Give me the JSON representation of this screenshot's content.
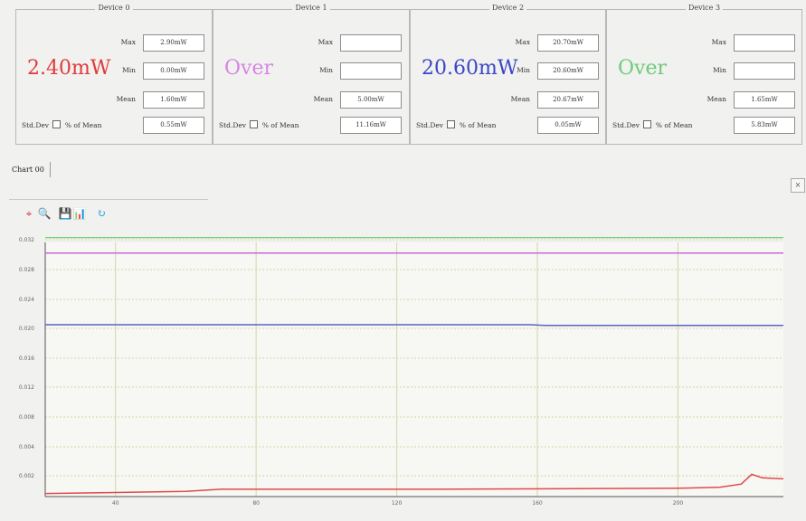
{
  "devices": [
    {
      "title": "Device 0",
      "big_value": "2.40mW",
      "big_color": "#e23a3a",
      "max_label": "Max",
      "max": "2.90mW",
      "min_label": "Min",
      "min": "0.00mW",
      "mean_label": "Mean",
      "mean": "1.60mW",
      "std_label": "Std.Dev",
      "pct_label": "% of Mean",
      "std": "0.55mW"
    },
    {
      "title": "Device 1",
      "big_value": "Over",
      "big_color": "#d685e6",
      "max_label": "Max",
      "max": "",
      "min_label": "Min",
      "min": "",
      "mean_label": "Mean",
      "mean": "5.00mW",
      "std_label": "Std.Dev",
      "pct_label": "% of Mean",
      "std": "11.16mW"
    },
    {
      "title": "Device 2",
      "big_value": "20.60mW",
      "big_color": "#3c46c8",
      "max_label": "Max",
      "max": "20.70mW",
      "min_label": "Min",
      "min": "20.60mW",
      "mean_label": "Mean",
      "mean": "20.67mW",
      "std_label": "Std.Dev",
      "pct_label": "% of Mean",
      "std": "0.05mW"
    },
    {
      "title": "Device 3",
      "big_value": "Over",
      "big_color": "#6ecb7a",
      "max_label": "Max",
      "max": "",
      "min_label": "Min",
      "min": "",
      "mean_label": "Mean",
      "mean": "1.65mW",
      "std_label": "Std.Dev",
      "pct_label": "% of Mean",
      "std": "5.83mW"
    }
  ],
  "tab": {
    "label": "Chart 00"
  },
  "close": {
    "label": "×"
  },
  "toolbar": [
    {
      "name": "crosshair-icon",
      "glyph": "⌖",
      "color": "#d23b3b"
    },
    {
      "name": "zoom-icon",
      "glyph": "🔍",
      "color": "#1f5fbf"
    },
    {
      "name": "save-icon",
      "glyph": "💾",
      "color": "#1a2a6e"
    },
    {
      "name": "export-data-icon",
      "glyph": "📊",
      "color": "#5a5a2a"
    },
    {
      "name": "refresh-icon",
      "glyph": "↻",
      "color": "#1ba6d6"
    }
  ],
  "chart_data": {
    "type": "line",
    "yticks": [
      "0.002",
      "0.004",
      "0.008",
      "0.012",
      "0.016",
      "0.020",
      "0.024",
      "0.028",
      "0.032"
    ],
    "xticks": [
      "40",
      "80",
      "120",
      "160",
      "200"
    ],
    "x_range": [
      20,
      230
    ],
    "series": [
      {
        "color": "#6fcf6f",
        "values": [
          [
            20,
            0.0323
          ],
          [
            230,
            0.0323
          ]
        ]
      },
      {
        "color": "#c86ad8",
        "values": [
          [
            20,
            0.0302
          ],
          [
            230,
            0.0302
          ]
        ]
      },
      {
        "color": "#5a62c8",
        "values": [
          [
            20,
            0.0205
          ],
          [
            158,
            0.0205
          ],
          [
            162,
            0.0204
          ],
          [
            230,
            0.0204
          ]
        ]
      },
      {
        "color": "#e04a4a",
        "values": [
          [
            20,
            0.0003
          ],
          [
            60,
            0.0005
          ],
          [
            70,
            0.0007
          ],
          [
            130,
            0.0007
          ],
          [
            200,
            0.0008
          ],
          [
            212,
            0.0009
          ],
          [
            218,
            0.0012
          ],
          [
            221,
            0.0021
          ],
          [
            224,
            0.0018
          ],
          [
            230,
            0.0017
          ]
        ]
      }
    ]
  }
}
